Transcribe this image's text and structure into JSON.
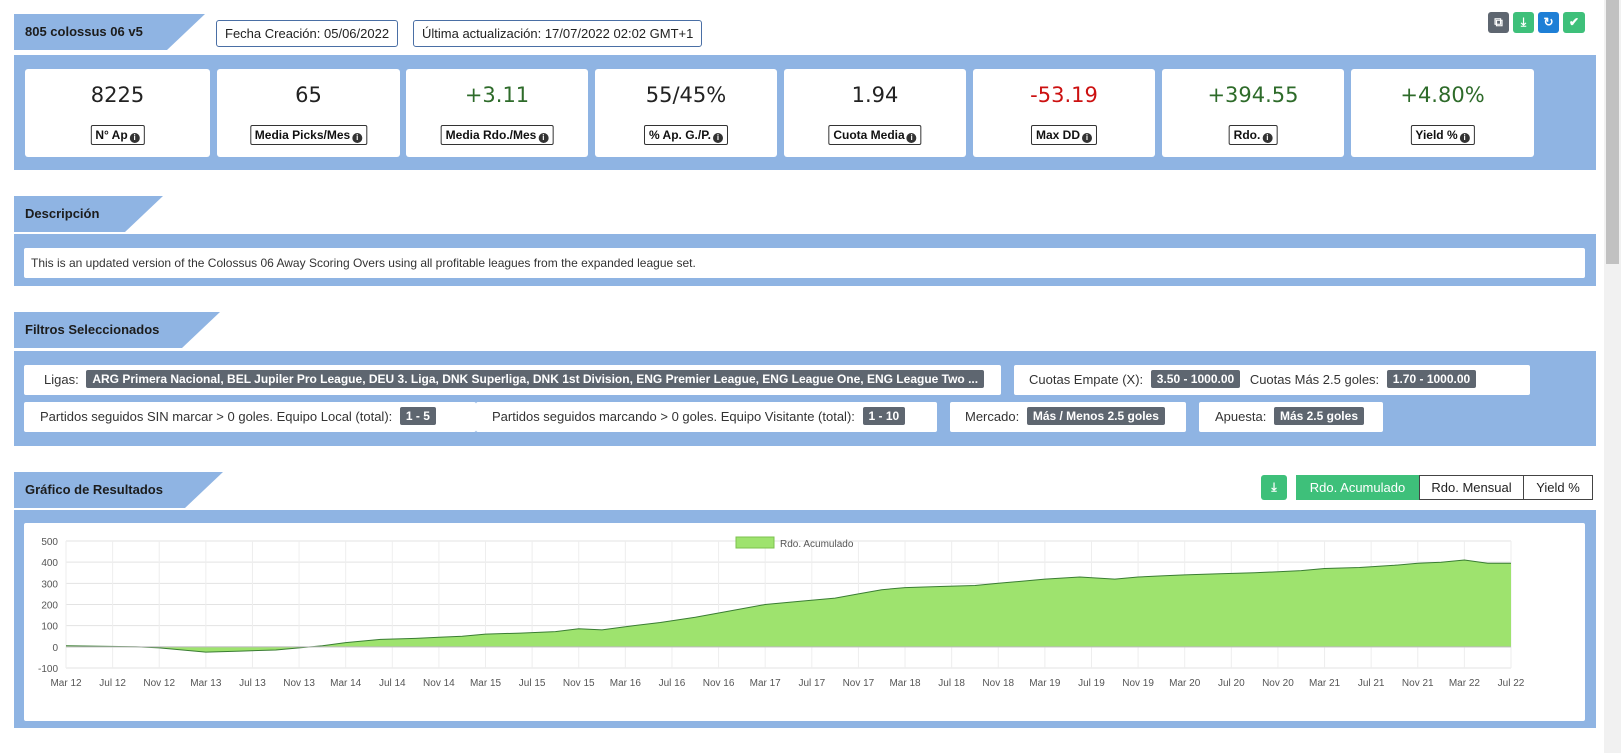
{
  "header": {
    "system_name": "805 colossus 06 v5",
    "created": "Fecha Creación: 05/06/2022",
    "updated": "Última actualización: 17/07/2022 02:02 GMT+1"
  },
  "toolbar": {
    "icons": [
      "copy-icon",
      "download-icon",
      "refresh-icon",
      "check-icon"
    ],
    "colors": {
      "grey": "#5e6670",
      "green": "#3ec07a",
      "blue": "#1e7fd6"
    }
  },
  "stats": [
    {
      "value": "8225",
      "label": "N° Ap",
      "color": "#222222"
    },
    {
      "value": "65",
      "label": "Media Picks/Mes",
      "color": "#222222"
    },
    {
      "value": "+3.11",
      "label": "Media Rdo./Mes",
      "color": "#2e6b2a"
    },
    {
      "value": "55/45%",
      "label": "% Ap. G./P.",
      "color": "#222222"
    },
    {
      "value": "1.94",
      "label": "Cuota Media",
      "color": "#222222"
    },
    {
      "value": "-53.19",
      "label": "Max DD",
      "color": "#cc1111"
    },
    {
      "value": "+394.55",
      "label": "Rdo.",
      "color": "#2e6b2a"
    },
    {
      "value": "+4.80%",
      "label": "Yield %",
      "color": "#2e6b2a"
    }
  ],
  "description": {
    "title": "Descripción",
    "text": "This is an updated version of the Colossus 06 Away Scoring Overs using all profitable leagues from the expanded league set."
  },
  "filters": {
    "title": "Filtros Seleccionados",
    "ligas_label": "Ligas:",
    "ligas_value": "ARG Primera Nacional, BEL Jupiler Pro League, DEU 3. Liga, DNK Superliga, DNK 1st Division, ENG Premier League, ENG League One, ENG League Two ...",
    "empate_label": "Cuotas Empate (X):",
    "empate_value": "3.50 - 1000.00",
    "mas25_label": "Cuotas Más 2.5 goles:",
    "mas25_value": "1.70 - 1000.00",
    "sin_marcar_label": "Partidos seguidos SIN marcar > 0 goles. Equipo Local (total):",
    "sin_marcar_value": "1 - 5",
    "marcando_label": "Partidos seguidos marcando > 0 goles. Equipo Visitante (total):",
    "marcando_value": "1 - 10",
    "mercado_label": "Mercado:",
    "mercado_value": "Más / Menos 2.5 goles",
    "apuesta_label": "Apuesta:",
    "apuesta_value": "Más 2.5 goles"
  },
  "chart_section": {
    "title": "Gráfico de Resultados",
    "buttons": [
      "Rdo. Acumulado",
      "Rdo. Mensual",
      "Yield %"
    ],
    "active_button": "Rdo. Acumulado",
    "accent": "#3ec07a"
  },
  "chart_data": {
    "type": "area",
    "legend": "Rdo. Acumulado",
    "legend_position": "top-center",
    "fill_color": "#9ee36e",
    "line_color": "#3a7d33",
    "ylim": [
      -100,
      500
    ],
    "yticks": [
      -100,
      0,
      100,
      200,
      300,
      400,
      500
    ],
    "xlim": [
      "2012-03",
      "2022-07"
    ],
    "xticks": [
      "Mar 12",
      "Jul 12",
      "Nov 12",
      "Mar 13",
      "Jul 13",
      "Nov 13",
      "Mar 14",
      "Jul 14",
      "Nov 14",
      "Mar 15",
      "Jul 15",
      "Nov 15",
      "Mar 16",
      "Jul 16",
      "Nov 16",
      "Mar 17",
      "Jul 17",
      "Nov 17",
      "Mar 18",
      "Jul 18",
      "Nov 18",
      "Mar 19",
      "Jul 19",
      "Nov 19",
      "Mar 20",
      "Jul 20",
      "Nov 20",
      "Mar 21",
      "Jul 21",
      "Nov 21",
      "Mar 22",
      "Jul 22"
    ],
    "grid": true,
    "x": [
      "2012-03",
      "2012-06",
      "2012-09",
      "2012-11",
      "2013-01",
      "2013-03",
      "2013-06",
      "2013-09",
      "2013-11",
      "2014-01",
      "2014-03",
      "2014-06",
      "2014-09",
      "2014-11",
      "2015-01",
      "2015-03",
      "2015-06",
      "2015-09",
      "2015-11",
      "2016-01",
      "2016-03",
      "2016-06",
      "2016-09",
      "2016-11",
      "2017-01",
      "2017-03",
      "2017-06",
      "2017-09",
      "2017-11",
      "2018-01",
      "2018-03",
      "2018-06",
      "2018-09",
      "2018-11",
      "2019-01",
      "2019-03",
      "2019-06",
      "2019-09",
      "2019-11",
      "2020-01",
      "2020-03",
      "2020-06",
      "2020-09",
      "2020-11",
      "2021-01",
      "2021-03",
      "2021-06",
      "2021-09",
      "2021-11",
      "2022-01",
      "2022-03",
      "2022-05",
      "2022-07"
    ],
    "values": [
      5,
      3,
      0,
      -5,
      -15,
      -25,
      -20,
      -15,
      -5,
      5,
      20,
      35,
      40,
      45,
      50,
      60,
      65,
      72,
      85,
      80,
      95,
      115,
      140,
      160,
      180,
      200,
      215,
      230,
      250,
      270,
      280,
      285,
      290,
      300,
      310,
      320,
      330,
      320,
      330,
      335,
      340,
      345,
      350,
      355,
      360,
      370,
      375,
      385,
      395,
      400,
      410,
      395,
      394.55
    ]
  }
}
